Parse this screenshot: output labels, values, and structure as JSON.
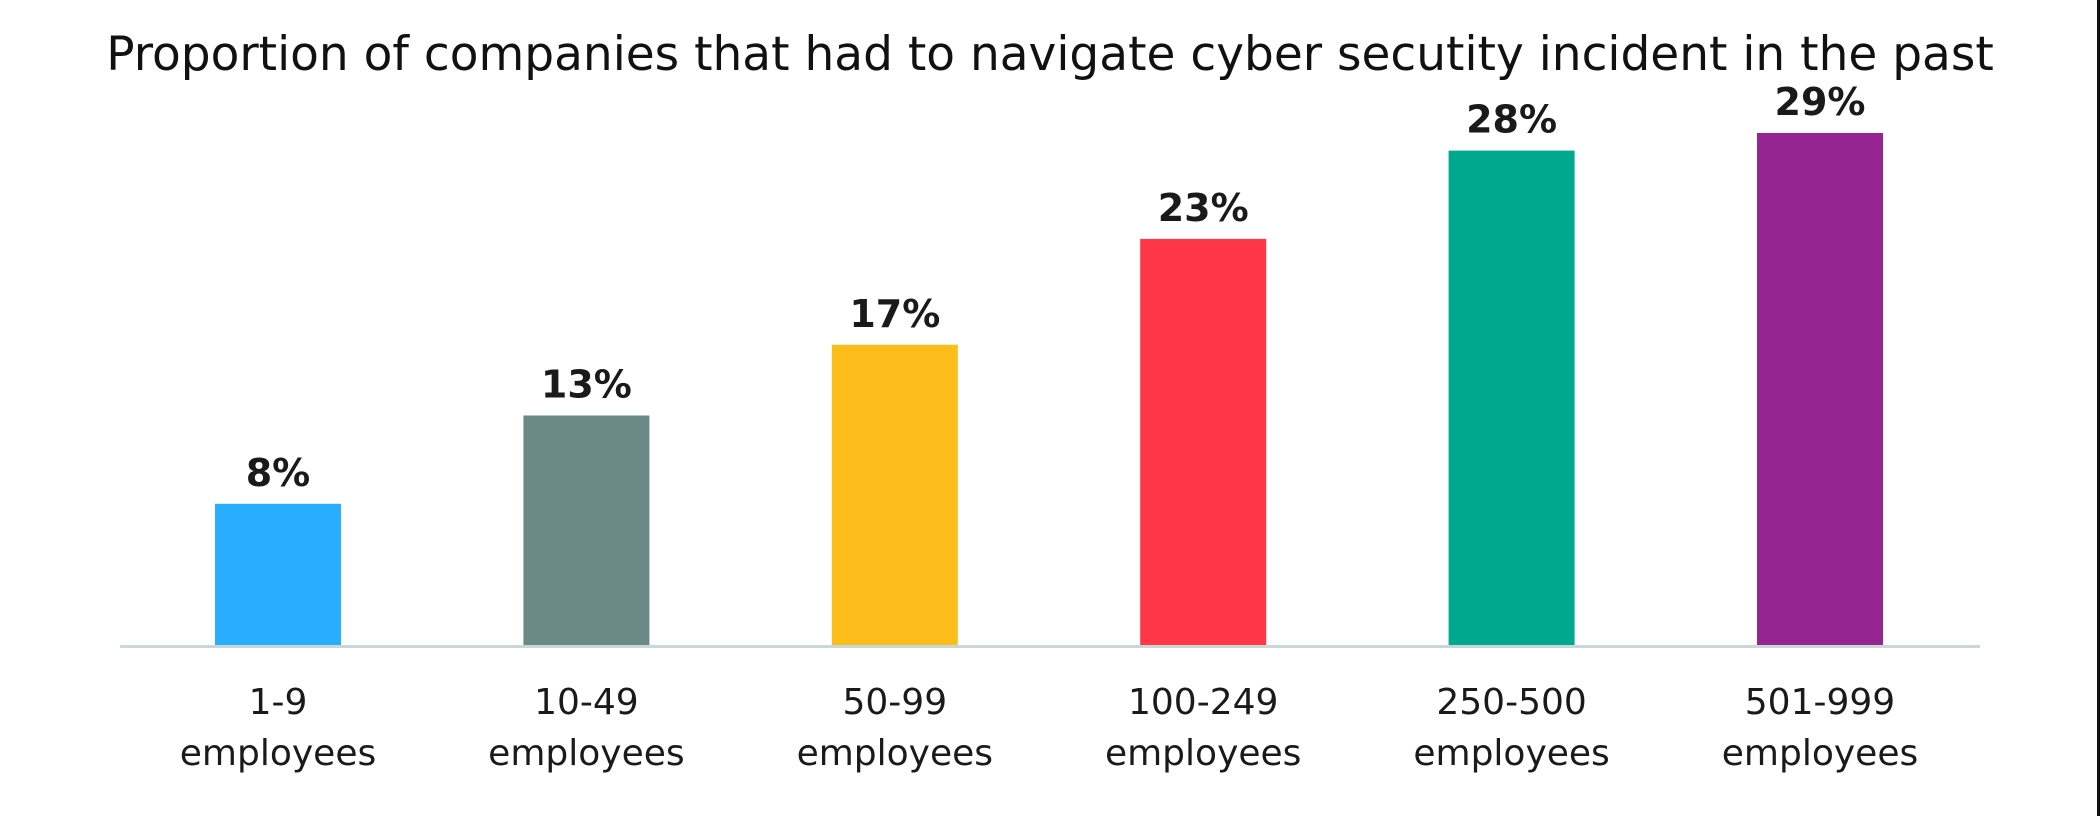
{
  "chart_data": {
    "type": "bar",
    "title": "Proportion of companies that had to navigate cyber secutity incident in the past",
    "categories": [
      [
        "1-9",
        "employees"
      ],
      [
        "10-49",
        "employees"
      ],
      [
        "50-99",
        "employees"
      ],
      [
        "100-249",
        "employees"
      ],
      [
        "250-500",
        "employees"
      ],
      [
        "501-999",
        "employees"
      ]
    ],
    "values": [
      8,
      13,
      17,
      23,
      28,
      29
    ],
    "value_labels": [
      "8%",
      "13%",
      "17%",
      "23%",
      "28%",
      "29%"
    ],
    "unit": "%",
    "colors": [
      "#29AEFF",
      "#6B8A86",
      "#FCBC1A",
      "#FF3548",
      "#00A88E",
      "#952590"
    ],
    "axis_color": "#C8D8D6",
    "ylim": [
      0,
      32
    ],
    "grid": false,
    "legend": "none"
  }
}
